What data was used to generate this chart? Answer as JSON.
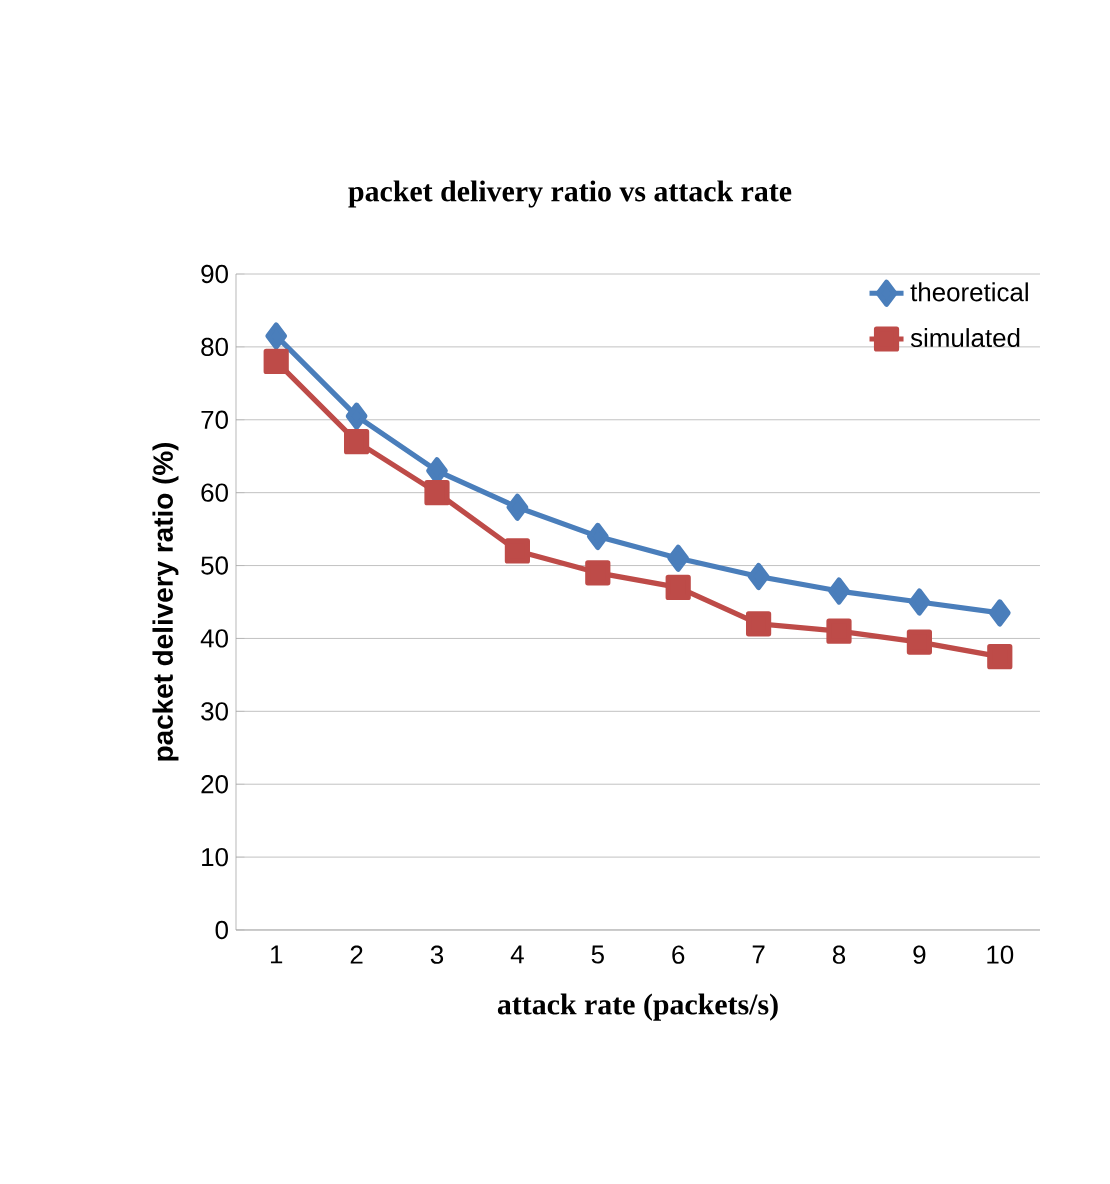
{
  "chart_data": {
    "type": "line",
    "title": "packet delivery ratio vs attack rate",
    "xlabel": "attack rate (packets/s)",
    "ylabel": "packet delivery ratio (%)",
    "categories": [
      "1",
      "2",
      "3",
      "4",
      "5",
      "6",
      "7",
      "8",
      "9",
      "10"
    ],
    "series": [
      {
        "name": "theoretical",
        "color": "#4a7ebb",
        "marker": "diamond",
        "values": [
          81.5,
          70.5,
          63,
          58,
          54,
          51,
          48.5,
          46.5,
          45,
          43.5
        ]
      },
      {
        "name": "simulated",
        "color": "#be4b48",
        "marker": "square",
        "values": [
          78,
          67,
          60,
          52,
          49,
          47,
          42,
          41,
          39.5,
          37.5
        ]
      }
    ],
    "ylim": [
      0,
      90
    ],
    "yticks": [
      0,
      10,
      20,
      30,
      40,
      50,
      60,
      70,
      80,
      90
    ],
    "grid": "y",
    "legend": "top right",
    "line_style": "solid"
  }
}
